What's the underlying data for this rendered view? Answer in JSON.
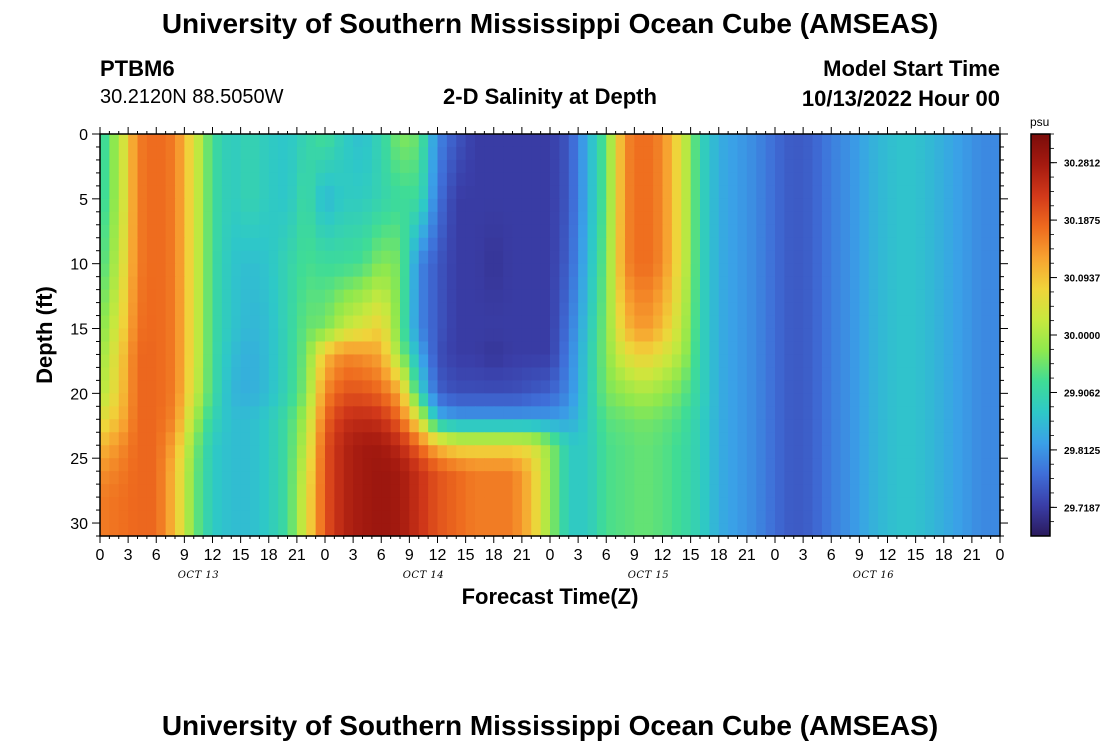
{
  "header": {
    "title": "University of Southern Mississippi Ocean Cube (AMSEAS)",
    "station_id": "PTBM6",
    "station_coords": "30.2120N  88.5050W",
    "plot_title": "2-D Salinity at Depth",
    "model_start_label": "Model Start Time",
    "model_start_value": "10/13/2022 Hour 00"
  },
  "footer": {
    "title": "University of Southern Mississippi Ocean Cube (AMSEAS)"
  },
  "chart_data": {
    "type": "heatmap",
    "title": "2-D Salinity at Depth",
    "xlabel": "Forecast Time(Z)",
    "ylabel": "Depth (ft)",
    "x_tick_labels": [
      "0",
      "3",
      "6",
      "9",
      "12",
      "15",
      "18",
      "21",
      "0",
      "3",
      "6",
      "9",
      "12",
      "15",
      "18",
      "21",
      "0",
      "3",
      "6",
      "9",
      "12",
      "15",
      "18",
      "21",
      "0",
      "3",
      "6",
      "9",
      "12",
      "15",
      "18",
      "21",
      "0"
    ],
    "day_labels": [
      "OCT 13",
      "OCT 14",
      "OCT 15",
      "OCT 16"
    ],
    "xlim_hours": [
      0,
      96
    ],
    "y_ticks": [
      0,
      5,
      10,
      15,
      20,
      25,
      30
    ],
    "ylim": [
      0,
      31
    ],
    "y_inverted": true,
    "colorbar": {
      "unit": "psu",
      "tick_labels": [
        "30.2812",
        "30.1875",
        "30.0937",
        "30.0000",
        "29.9062",
        "29.8125",
        "29.7187"
      ],
      "tick_values": [
        30.2812,
        30.1875,
        30.0937,
        30.0,
        29.9062,
        29.8125,
        29.7187
      ],
      "range": [
        29.672,
        30.328
      ],
      "colors": [
        "#2a1a5c",
        "#3a3ea8",
        "#3f6ed8",
        "#3aa0e8",
        "#2ec8c8",
        "#3fdc96",
        "#8ee84e",
        "#c8e83e",
        "#f0d43a",
        "#f7a230",
        "#ee6a1e",
        "#d2391a",
        "#a51a10",
        "#7a0c0a"
      ]
    },
    "depth_profile_rows_ft": [
      0,
      5,
      10,
      15,
      17,
      20,
      22,
      24,
      26,
      28,
      31
    ],
    "time_columns_hours": [
      0,
      2,
      4,
      6,
      8,
      10,
      12,
      14,
      16,
      18,
      20,
      22,
      24,
      26,
      28,
      30,
      32,
      34,
      36,
      38,
      40,
      42,
      44,
      46,
      48,
      50,
      52,
      54,
      56,
      58,
      60,
      62,
      64,
      66,
      68,
      70,
      72,
      74,
      76,
      78,
      80,
      82,
      84,
      86,
      88,
      90,
      92,
      94,
      96
    ],
    "salinity_psu_grid": "rows = depth_profile_rows_ft, columns = time_columns_hours",
    "values": [
      [
        29.9,
        30.0,
        30.16,
        30.18,
        30.16,
        30.05,
        29.92,
        29.88,
        29.9,
        29.88,
        29.87,
        29.9,
        29.93,
        29.88,
        29.86,
        29.9,
        29.97,
        29.95,
        29.8,
        29.75,
        29.72,
        29.72,
        29.72,
        29.72,
        29.72,
        29.75,
        29.84,
        29.95,
        30.15,
        30.18,
        30.15,
        30.05,
        29.9,
        29.84,
        29.82,
        29.8,
        29.77,
        29.75,
        29.76,
        29.79,
        29.81,
        29.84,
        29.86,
        29.87,
        29.86,
        29.84,
        29.82,
        29.8,
        29.8
      ],
      [
        29.9,
        30.0,
        30.16,
        30.18,
        30.16,
        30.05,
        29.92,
        29.88,
        29.9,
        29.88,
        29.87,
        29.92,
        29.85,
        29.88,
        29.88,
        29.9,
        29.92,
        29.92,
        29.78,
        29.72,
        29.72,
        29.72,
        29.72,
        29.72,
        29.72,
        29.75,
        29.84,
        29.95,
        30.15,
        30.18,
        30.15,
        30.05,
        29.9,
        29.84,
        29.82,
        29.8,
        29.77,
        29.75,
        29.76,
        29.79,
        29.81,
        29.84,
        29.86,
        29.87,
        29.86,
        29.84,
        29.82,
        29.8,
        29.8
      ],
      [
        29.92,
        30.02,
        30.16,
        30.18,
        30.16,
        30.05,
        29.92,
        29.87,
        29.86,
        29.87,
        29.9,
        29.93,
        29.92,
        29.92,
        29.93,
        29.97,
        29.96,
        29.8,
        29.75,
        29.72,
        29.72,
        29.71,
        29.72,
        29.72,
        29.72,
        29.76,
        29.85,
        29.96,
        30.15,
        30.18,
        30.15,
        30.05,
        29.9,
        29.84,
        29.82,
        29.8,
        29.77,
        29.75,
        29.76,
        29.79,
        29.81,
        29.84,
        29.86,
        29.87,
        29.86,
        29.84,
        29.82,
        29.8,
        29.8
      ],
      [
        29.96,
        30.05,
        30.17,
        30.18,
        30.16,
        30.05,
        29.92,
        29.87,
        29.85,
        29.86,
        29.9,
        29.95,
        29.96,
        30.02,
        30.05,
        30.08,
        29.95,
        29.8,
        29.75,
        29.72,
        29.72,
        29.72,
        29.72,
        29.72,
        29.72,
        29.78,
        29.87,
        29.97,
        30.1,
        30.14,
        30.1,
        30.02,
        29.9,
        29.84,
        29.82,
        29.8,
        29.77,
        29.75,
        29.76,
        29.79,
        29.81,
        29.84,
        29.86,
        29.87,
        29.86,
        29.84,
        29.82,
        29.8,
        29.8
      ],
      [
        29.98,
        30.07,
        30.18,
        30.18,
        30.16,
        30.05,
        29.92,
        29.86,
        29.84,
        29.86,
        29.9,
        29.96,
        30.1,
        30.15,
        30.14,
        30.12,
        29.98,
        29.84,
        29.74,
        29.72,
        29.72,
        29.71,
        29.72,
        29.72,
        29.72,
        29.79,
        29.88,
        29.97,
        30.05,
        30.08,
        30.05,
        30.0,
        29.9,
        29.84,
        29.82,
        29.8,
        29.77,
        29.75,
        29.76,
        29.79,
        29.81,
        29.84,
        29.86,
        29.87,
        29.86,
        29.84,
        29.82,
        29.8,
        29.8
      ],
      [
        30.0,
        30.08,
        30.18,
        30.18,
        30.16,
        30.04,
        29.92,
        29.85,
        29.84,
        29.86,
        29.9,
        29.97,
        30.15,
        30.2,
        30.2,
        30.18,
        30.12,
        29.9,
        29.76,
        29.74,
        29.74,
        29.74,
        29.74,
        29.75,
        29.76,
        29.8,
        29.88,
        29.96,
        29.98,
        30.0,
        29.98,
        29.95,
        29.9,
        29.84,
        29.82,
        29.8,
        29.77,
        29.75,
        29.76,
        29.79,
        29.81,
        29.84,
        29.86,
        29.87,
        29.86,
        29.84,
        29.82,
        29.8,
        29.8
      ],
      [
        30.05,
        30.1,
        30.18,
        30.18,
        30.15,
        30.0,
        29.9,
        29.86,
        29.86,
        29.88,
        29.92,
        30.0,
        30.18,
        30.24,
        30.25,
        30.24,
        30.18,
        30.05,
        29.85,
        29.82,
        29.82,
        29.82,
        29.82,
        29.82,
        29.82,
        29.83,
        29.88,
        29.94,
        29.95,
        29.96,
        29.95,
        29.93,
        29.89,
        29.84,
        29.82,
        29.8,
        29.77,
        29.75,
        29.76,
        29.79,
        29.81,
        29.84,
        29.86,
        29.87,
        29.86,
        29.84,
        29.82,
        29.8,
        29.8
      ],
      [
        30.1,
        30.14,
        30.18,
        30.18,
        30.12,
        29.97,
        29.88,
        29.86,
        29.86,
        29.88,
        29.92,
        30.02,
        30.2,
        30.26,
        30.28,
        30.28,
        30.25,
        30.18,
        30.1,
        30.06,
        30.06,
        30.06,
        30.06,
        30.05,
        29.98,
        29.88,
        29.88,
        29.93,
        29.94,
        29.95,
        29.94,
        29.92,
        29.89,
        29.84,
        29.82,
        29.8,
        29.77,
        29.75,
        29.76,
        29.79,
        29.81,
        29.84,
        29.86,
        29.87,
        29.86,
        29.84,
        29.82,
        29.8,
        29.8
      ],
      [
        30.14,
        30.16,
        30.18,
        30.18,
        30.1,
        29.96,
        29.88,
        29.86,
        29.86,
        29.88,
        29.92,
        30.04,
        30.2,
        30.26,
        30.28,
        30.29,
        30.28,
        30.24,
        30.2,
        30.18,
        30.16,
        30.16,
        30.16,
        30.1,
        29.98,
        29.88,
        29.88,
        29.93,
        29.94,
        29.95,
        29.94,
        29.92,
        29.89,
        29.84,
        29.82,
        29.8,
        29.77,
        29.75,
        29.76,
        29.79,
        29.81,
        29.84,
        29.86,
        29.87,
        29.86,
        29.84,
        29.82,
        29.8,
        29.8
      ],
      [
        30.16,
        30.17,
        30.18,
        30.18,
        30.1,
        29.96,
        29.88,
        29.86,
        29.86,
        29.88,
        29.92,
        30.05,
        30.2,
        30.26,
        30.28,
        30.29,
        30.28,
        30.24,
        30.2,
        30.18,
        30.16,
        30.16,
        30.16,
        30.1,
        29.98,
        29.88,
        29.88,
        29.93,
        29.94,
        29.95,
        29.94,
        29.92,
        29.89,
        29.84,
        29.82,
        29.8,
        29.77,
        29.75,
        29.76,
        29.79,
        29.81,
        29.84,
        29.86,
        29.87,
        29.86,
        29.84,
        29.82,
        29.8,
        29.8
      ],
      [
        30.16,
        30.17,
        30.18,
        30.18,
        30.1,
        29.96,
        29.88,
        29.86,
        29.86,
        29.88,
        29.92,
        30.05,
        30.2,
        30.26,
        30.28,
        30.29,
        30.28,
        30.24,
        30.2,
        30.18,
        30.16,
        30.16,
        30.16,
        30.1,
        29.98,
        29.88,
        29.88,
        29.93,
        29.94,
        29.95,
        29.94,
        29.92,
        29.89,
        29.84,
        29.82,
        29.8,
        29.77,
        29.75,
        29.76,
        29.79,
        29.81,
        29.84,
        29.86,
        29.87,
        29.86,
        29.84,
        29.82,
        29.8,
        29.8
      ]
    ]
  }
}
